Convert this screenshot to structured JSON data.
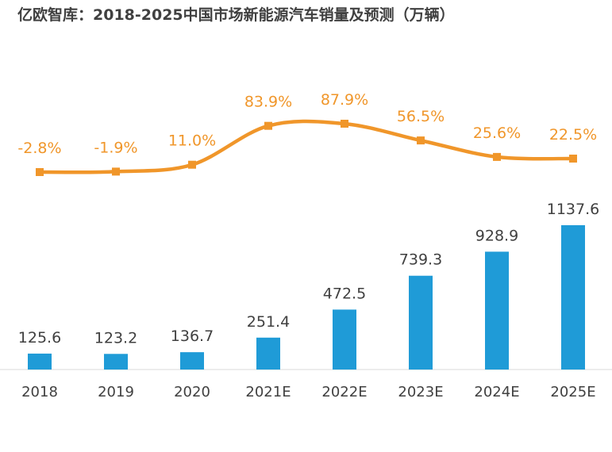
{
  "chart_data": {
    "title": "亿欧智库：2018-2025中国市场新能源汽车销量及预测（万辆）",
    "type": "bar+line",
    "categories": [
      "2018",
      "2019",
      "2020",
      "2021E",
      "2022E",
      "2023E",
      "2024E",
      "2025E"
    ],
    "series": [
      {
        "values": [
          125.6,
          123.2,
          136.7,
          251.4,
          472.5,
          739.3,
          928.9,
          1137.6
        ],
        "type": "bar",
        "color": "#1f9bd7"
      },
      {
        "values": [
          -2.8,
          -1.9,
          11.0,
          83.9,
          87.9,
          56.5,
          25.6,
          22.5
        ],
        "type": "line",
        "color": "#f0962a"
      }
    ],
    "growth_labels": [
      "-2.8%",
      "-1.9%",
      "11.0%",
      "83.9%",
      "87.9%",
      "56.5%",
      "25.6%",
      "22.5%"
    ],
    "bar_labels": [
      "125.6",
      "123.2",
      "136.7",
      "251.4",
      "472.5",
      "739.3",
      "928.9",
      "1137.6"
    ],
    "legend": "none",
    "grid": false
  }
}
